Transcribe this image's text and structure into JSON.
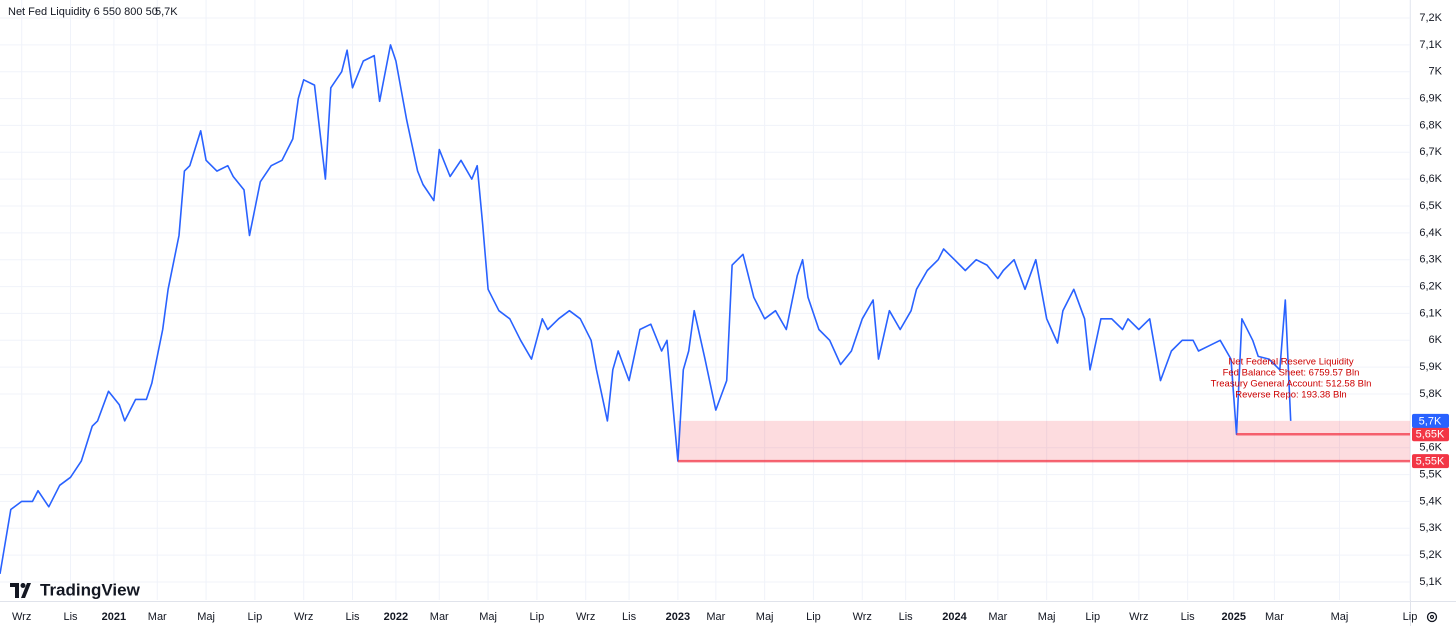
{
  "chart_data": {
    "type": "line",
    "series": [
      {
        "name": "Net Fed Liquidity 6 550 800 50",
        "color": "#2962ff",
        "last_value": {
          "value": 5700,
          "label": "5,7K"
        },
        "x": [
          0,
          2,
          4,
          6,
          7,
          9,
          11,
          13,
          15,
          17,
          18,
          20,
          22,
          23,
          25,
          27,
          28,
          30,
          31,
          33,
          34,
          35,
          37,
          38,
          40,
          42,
          43,
          45,
          46,
          48,
          50,
          52,
          54,
          55,
          56,
          58,
          60,
          61,
          63,
          64,
          65,
          67,
          69,
          70,
          72,
          73,
          75,
          77,
          78,
          80,
          81,
          83,
          85,
          87,
          88,
          89,
          90,
          92,
          94,
          96,
          98,
          100,
          101,
          103,
          105,
          107,
          109,
          110,
          112,
          113,
          114,
          116,
          118,
          120,
          122,
          123,
          125,
          126,
          127,
          128,
          130,
          132,
          134,
          135,
          137,
          139,
          141,
          143,
          145,
          147,
          148,
          149,
          151,
          153,
          155,
          157,
          159,
          161,
          162,
          164,
          166,
          168,
          169,
          171,
          173,
          174,
          176,
          178,
          180,
          182,
          184,
          185,
          187,
          189,
          191,
          193,
          195,
          196,
          198,
          200,
          201,
          203,
          205,
          207,
          208,
          210,
          212,
          214,
          216,
          218,
          220,
          221,
          223,
          225,
          227,
          228,
          229,
          231,
          232,
          234,
          236,
          237,
          238
        ],
        "values": [
          5130,
          5370,
          5400,
          5400,
          5440,
          5380,
          5460,
          5490,
          5550,
          5680,
          5700,
          5810,
          5760,
          5700,
          5780,
          5780,
          5840,
          6040,
          6190,
          6390,
          6630,
          6650,
          6780,
          6670,
          6630,
          6650,
          6610,
          6560,
          6390,
          6590,
          6650,
          6670,
          6750,
          6900,
          6970,
          6950,
          6600,
          6940,
          7000,
          7080,
          6940,
          7040,
          7060,
          6890,
          7100,
          7040,
          6820,
          6630,
          6580,
          6520,
          6710,
          6610,
          6670,
          6600,
          6650,
          6430,
          6190,
          6110,
          6080,
          6000,
          5930,
          6080,
          6040,
          6080,
          6110,
          6080,
          6000,
          5890,
          5700,
          5890,
          5960,
          5850,
          6040,
          6060,
          5960,
          6000,
          5550,
          5890,
          5960,
          6110,
          5930,
          5740,
          5850,
          6280,
          6320,
          6160,
          6080,
          6110,
          6040,
          6240,
          6300,
          6160,
          6040,
          6000,
          5910,
          5960,
          6080,
          6150,
          5930,
          6110,
          6040,
          6110,
          6190,
          6260,
          6300,
          6340,
          6300,
          6260,
          6300,
          6280,
          6230,
          6260,
          6300,
          6190,
          6300,
          6080,
          5990,
          6110,
          6190,
          6080,
          5890,
          6080,
          6080,
          6040,
          6080,
          6040,
          6080,
          5850,
          5960,
          6000,
          6000,
          5960,
          5980,
          6000,
          5930,
          5650,
          6080,
          6000,
          5940,
          5930,
          5890,
          6150,
          5700
        ]
      }
    ],
    "xlim": [
      0,
      260
    ],
    "xticks": [
      {
        "value": 4,
        "label": "Wrz"
      },
      {
        "value": 13,
        "label": "Lis"
      },
      {
        "value": 21,
        "label": "2021"
      },
      {
        "value": 29,
        "label": "Mar"
      },
      {
        "value": 38,
        "label": "Maj"
      },
      {
        "value": 47,
        "label": "Lip"
      },
      {
        "value": 56,
        "label": "Wrz"
      },
      {
        "value": 65,
        "label": "Lis"
      },
      {
        "value": 73,
        "label": "2022"
      },
      {
        "value": 81,
        "label": "Mar"
      },
      {
        "value": 90,
        "label": "Maj"
      },
      {
        "value": 99,
        "label": "Lip"
      },
      {
        "value": 108,
        "label": "Wrz"
      },
      {
        "value": 116,
        "label": "Lis"
      },
      {
        "value": 125,
        "label": "2023"
      },
      {
        "value": 132,
        "label": "Mar"
      },
      {
        "value": 141,
        "label": "Maj"
      },
      {
        "value": 150,
        "label": "Lip"
      },
      {
        "value": 159,
        "label": "Wrz"
      },
      {
        "value": 167,
        "label": "Lis"
      },
      {
        "value": 176,
        "label": "2024"
      },
      {
        "value": 184,
        "label": "Mar"
      },
      {
        "value": 193,
        "label": "Maj"
      },
      {
        "value": 201.5,
        "label": "Lip"
      },
      {
        "value": 210,
        "label": "Wrz"
      },
      {
        "value": 219,
        "label": "Lis"
      },
      {
        "value": 227.5,
        "label": "2025"
      },
      {
        "value": 235,
        "label": "Mar"
      },
      {
        "value": 247,
        "label": "Maj"
      },
      {
        "value": 260,
        "label": "Lip"
      }
    ],
    "ylim": [
      5033,
      7267
    ],
    "yticks": [
      {
        "value": 5100,
        "label": "5,1K"
      },
      {
        "value": 5200,
        "label": "5,2K"
      },
      {
        "value": 5300,
        "label": "5,3K"
      },
      {
        "value": 5400,
        "label": "5,4K"
      },
      {
        "value": 5500,
        "label": "5,5K"
      },
      {
        "value": 5600,
        "label": "5,6K"
      },
      {
        "value": 5800,
        "label": "5,8K"
      },
      {
        "value": 5900,
        "label": "5,9K"
      },
      {
        "value": 6000,
        "label": "6K"
      },
      {
        "value": 6100,
        "label": "6,1K"
      },
      {
        "value": 6200,
        "label": "6,2K"
      },
      {
        "value": 6300,
        "label": "6,3K"
      },
      {
        "value": 6400,
        "label": "6,4K"
      },
      {
        "value": 6500,
        "label": "6,5K"
      },
      {
        "value": 6600,
        "label": "6,6K"
      },
      {
        "value": 6700,
        "label": "6,7K"
      },
      {
        "value": 6800,
        "label": "6,8K"
      },
      {
        "value": 6900,
        "label": "6,9K"
      },
      {
        "value": 7000,
        "label": "7K"
      },
      {
        "value": 7100,
        "label": "7,1K"
      },
      {
        "value": 7200,
        "label": "7,2K"
      }
    ],
    "grid": true,
    "zone": {
      "x_start": 125,
      "low": 5550,
      "high": 5700,
      "color": "#f7525f"
    },
    "levels": [
      {
        "value": 5650,
        "label": "5,65K",
        "x_start": 228,
        "color": "#f23645"
      },
      {
        "value": 5550,
        "label": "5,55K",
        "x_start": 125,
        "color": "#f23645"
      }
    ],
    "annotation": {
      "color": "#cc0000",
      "lines": [
        "Net Federal Reserve Liquidity",
        "Fed Balance Sheet: 6759.57 Bln",
        "Treasury General Account: 512.58 Bln",
        "Reverse Repo: 193.38 Bln"
      ]
    },
    "watermark": "TradingView"
  }
}
